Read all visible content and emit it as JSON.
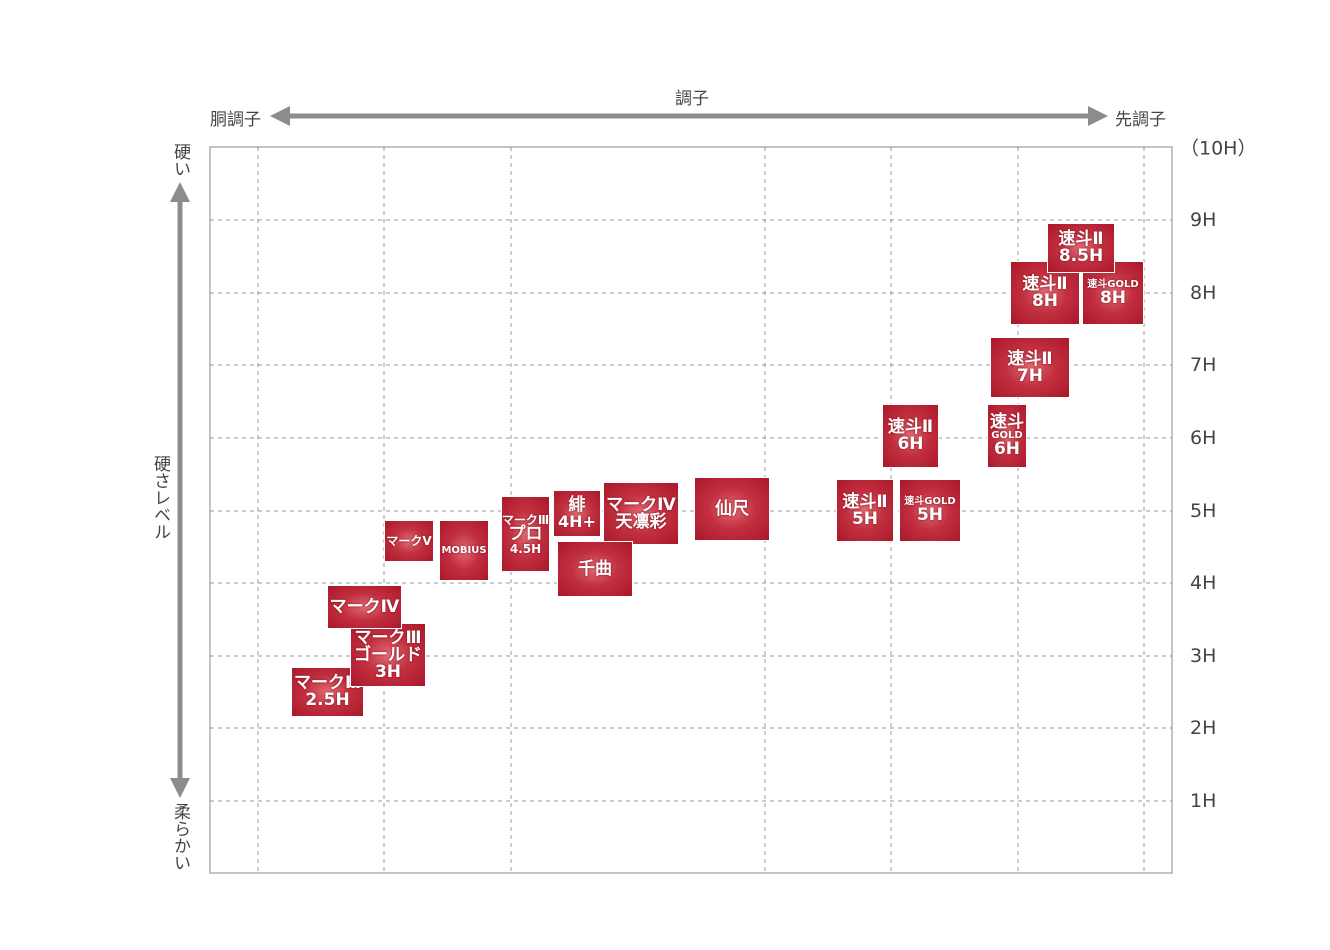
{
  "axis": {
    "title": "調子",
    "left": "胴調子",
    "right": "先調子",
    "y_top": "硬い",
    "y_title": "硬さレベル",
    "y_bottom": "柔らかい",
    "y_ticks": [
      "（10H）",
      "9H",
      "8H",
      "7H",
      "6H",
      "5H",
      "4H",
      "3H",
      "2H",
      "1H"
    ]
  },
  "products": [
    {
      "lines": [
        "マークⅢ",
        "2.5H"
      ]
    },
    {
      "lines": [
        "マークⅢ",
        "ゴールド",
        "3H"
      ]
    },
    {
      "lines": [
        "マークⅣ"
      ]
    },
    {
      "lines": [
        "マークⅤ"
      ]
    },
    {
      "lines": [
        "MOBIUS"
      ]
    },
    {
      "lines": [
        "マークⅢ",
        "プロ",
        "4.5H"
      ]
    },
    {
      "lines": [
        "緋",
        "4H+"
      ]
    },
    {
      "lines": [
        "マークⅣ",
        "天凛彩"
      ]
    },
    {
      "lines": [
        "千曲"
      ]
    },
    {
      "lines": [
        "仙尺"
      ]
    },
    {
      "lines": [
        "速斗Ⅱ",
        "5H"
      ]
    },
    {
      "lines": [
        "速斗GOLD",
        "5H"
      ]
    },
    {
      "lines": [
        "速斗Ⅱ",
        "6H"
      ]
    },
    {
      "lines": [
        "速斗",
        "GOLD",
        "6H"
      ]
    },
    {
      "lines": [
        "速斗Ⅱ",
        "7H"
      ]
    },
    {
      "lines": [
        "速斗Ⅱ",
        "8H"
      ]
    },
    {
      "lines": [
        "速斗GOLD",
        "8H"
      ]
    },
    {
      "lines": [
        "速斗Ⅱ",
        "8.5H"
      ]
    }
  ]
}
